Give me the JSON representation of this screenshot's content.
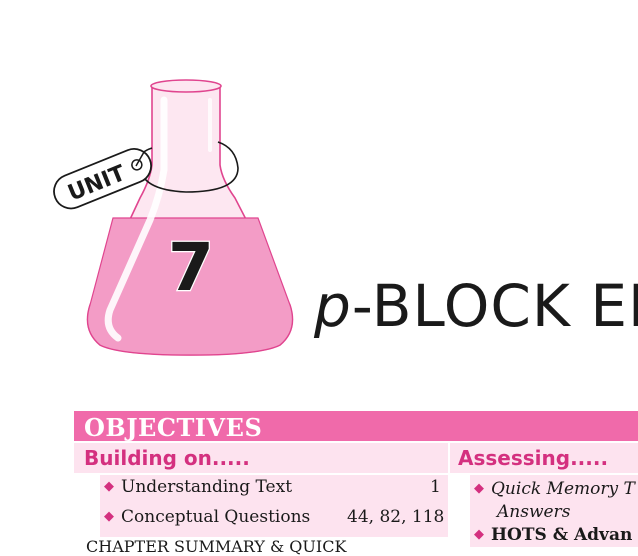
{
  "chapter": {
    "unit_label": "UNIT",
    "unit_number": "7",
    "title_prefix": "p",
    "title_rest": "-BLOCK EL"
  },
  "objectives": {
    "header": "OBJECTIVES",
    "building_on": {
      "title": "Building on.....",
      "items": [
        {
          "label": "Understanding Text",
          "pages": "1"
        },
        {
          "label": "Conceptual Questions",
          "pages": "44, 82, 118"
        }
      ],
      "cut_text": "CHAPTER SUMMARY & QUICK"
    },
    "assessing": {
      "title": "Assessing.....",
      "items": [
        {
          "line1": "Quick Memory T",
          "line2": "Answers"
        },
        {
          "line1": "HOTS & Advan"
        }
      ]
    }
  },
  "colors": {
    "accent_pink": "#f06aaa",
    "panel_pink": "#fde3ef",
    "heading_pink": "#d4307f",
    "flask_liquid": "#f39cc6"
  }
}
